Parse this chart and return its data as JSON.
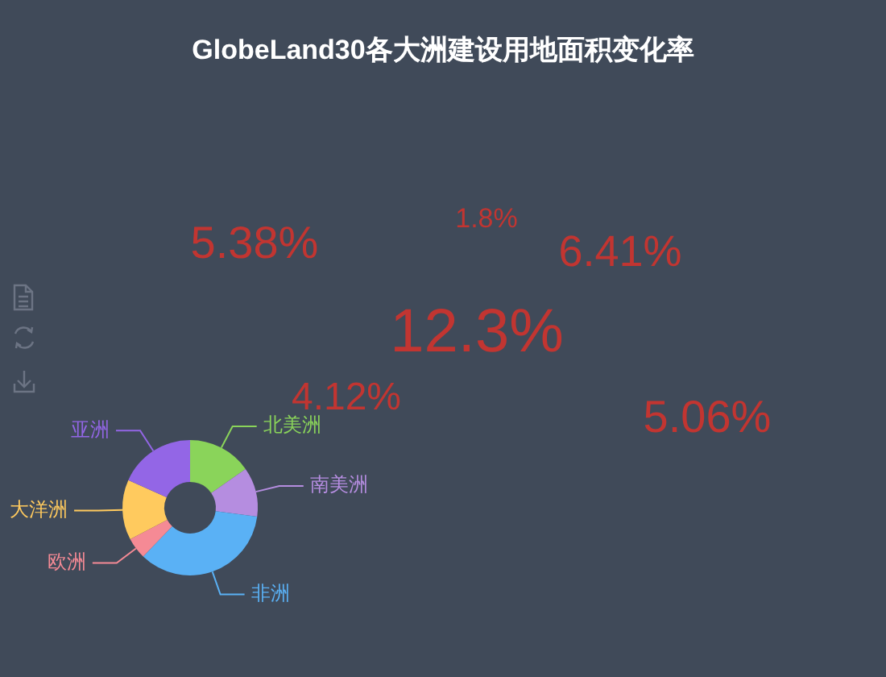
{
  "chart_data": [
    {
      "type": "donut",
      "title": "GlobeLand30各大洲建设用地面积变化率",
      "categories": [
        "北美洲",
        "南美洲",
        "非洲",
        "欧洲",
        "大洋洲",
        "亚洲"
      ],
      "values": [
        15.3,
        11.8,
        35.1,
        5.1,
        14.4,
        18.3
      ],
      "colors": [
        "#8ad45a",
        "#b58de0",
        "#5ab1f5",
        "#f58a95",
        "#ffca5e",
        "#9366e6"
      ]
    },
    {
      "type": "other",
      "annotations": [
        "1.8%",
        "5.38%",
        "6.41%",
        "12.3%",
        "4.12%",
        "5.06%"
      ],
      "color": "#c23531"
    }
  ]
}
